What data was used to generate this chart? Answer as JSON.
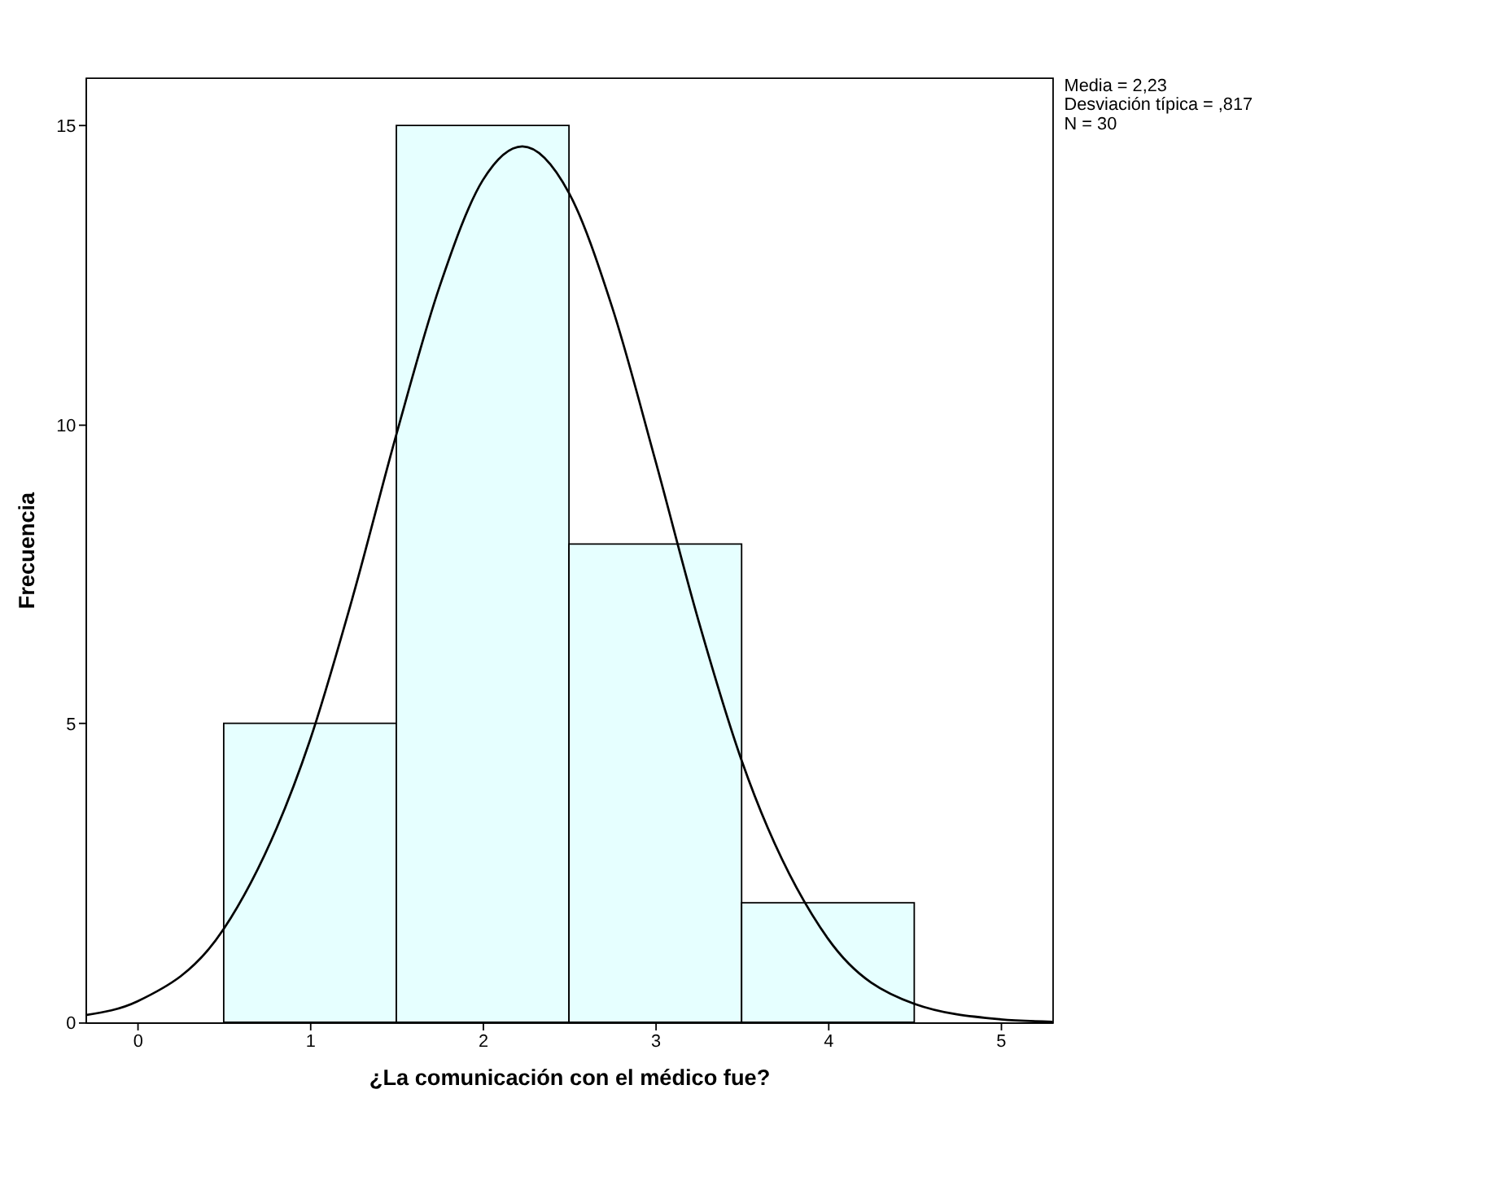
{
  "chart_data": {
    "type": "histogram",
    "xlabel": "¿La comunicación con el médico fue?",
    "ylabel": "Frecuencia",
    "bins": [
      0.5,
      1.5,
      2.5,
      3.5,
      4.5
    ],
    "values": [
      5,
      15,
      8,
      2
    ],
    "color": "#e6ffff",
    "series": [
      {
        "type": "line",
        "color": "#000000",
        "x": [
          -0.3,
          0,
          0.5,
          1,
          1.25,
          1.5,
          1.75,
          2,
          2.23,
          2.5,
          2.75,
          3,
          3.25,
          3.5,
          4,
          4.5,
          5,
          5.3
        ],
        "values": [
          0.12,
          0.35,
          1.56,
          4.72,
          7.14,
          9.83,
          12.3,
          14.08,
          14.65,
          13.87,
          11.96,
          9.4,
          6.72,
          4.38,
          1.4,
          0.31,
          0.05,
          0.01
        ]
      }
    ],
    "xlim": [
      -0.3,
      5.3
    ],
    "ylim": [
      0,
      15.8
    ],
    "xticks": [
      0,
      1,
      2,
      3,
      4,
      5
    ],
    "yticks": [
      0,
      5,
      10,
      15
    ],
    "grid": false,
    "annotations": [
      "Media = 2,23",
      "Desviación típica = ,817",
      "N = 30"
    ]
  }
}
